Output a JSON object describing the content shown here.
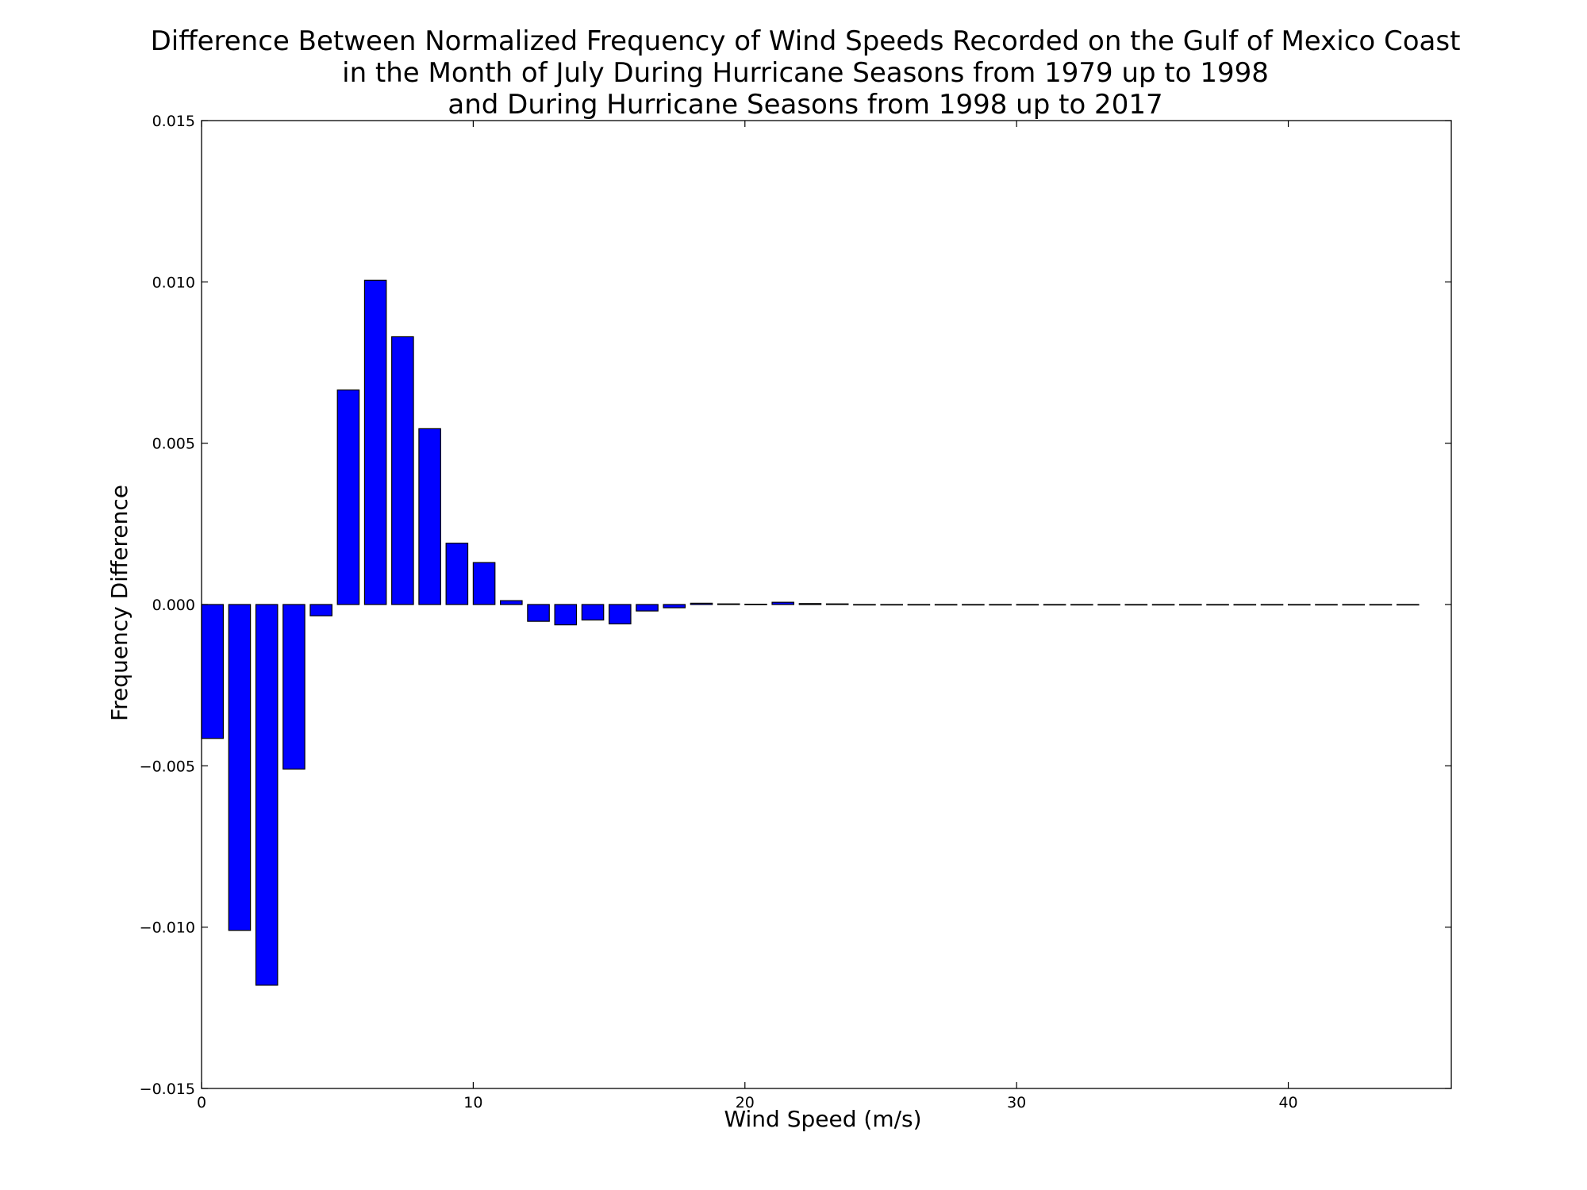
{
  "chart_data": {
    "type": "bar",
    "title_lines": [
      "Difference Between Normalized Frequency of Wind Speeds Recorded on the Gulf of Mexico Coast",
      "in the Month of July During Hurricane Seasons from 1979 up to 1998",
      "and During Hurricane Seasons from 1998 up to 2017"
    ],
    "xlabel": "Wind Speed (m/s)",
    "ylabel": "Frequency Difference",
    "xlim": [
      0,
      46
    ],
    "ylim": [
      -0.015,
      0.015
    ],
    "x_ticks": [
      0,
      10,
      20,
      30,
      40
    ],
    "x_tick_labels": [
      "0",
      "10",
      "20",
      "30",
      "40"
    ],
    "y_ticks": [
      -0.015,
      -0.01,
      -0.005,
      0,
      0.005,
      0.01,
      0.015
    ],
    "y_tick_labels": [
      "−0.015",
      "−0.010",
      "−0.005",
      "0.000",
      "0.005",
      "0.010",
      "0.015"
    ],
    "grid": false,
    "bar_color": "#0000ff",
    "edge_color": "#000000",
    "bar_width": 0.8,
    "x": [
      0,
      1,
      2,
      3,
      4,
      5,
      6,
      7,
      8,
      9,
      10,
      11,
      12,
      13,
      14,
      15,
      16,
      17,
      18,
      19,
      20,
      21,
      22,
      23,
      24,
      25,
      26,
      27,
      28,
      29,
      30,
      31,
      32,
      33,
      34,
      35,
      36,
      37,
      38,
      39,
      40,
      41,
      42,
      43,
      44
    ],
    "values": [
      -0.00415,
      -0.0101,
      -0.0118,
      -0.0051,
      -0.00035,
      0.00665,
      0.01005,
      0.0083,
      0.00545,
      0.0019,
      0.0013,
      0.00012,
      -0.00052,
      -0.00063,
      -0.00048,
      -0.0006,
      -0.0002,
      -0.0001,
      4e-05,
      2e-05,
      1e-05,
      7e-05,
      3e-05,
      2e-05,
      0,
      0,
      0,
      0,
      0,
      0,
      0,
      0,
      0,
      0,
      0,
      0,
      0,
      0,
      0,
      0,
      0,
      0,
      0,
      0,
      0
    ]
  }
}
